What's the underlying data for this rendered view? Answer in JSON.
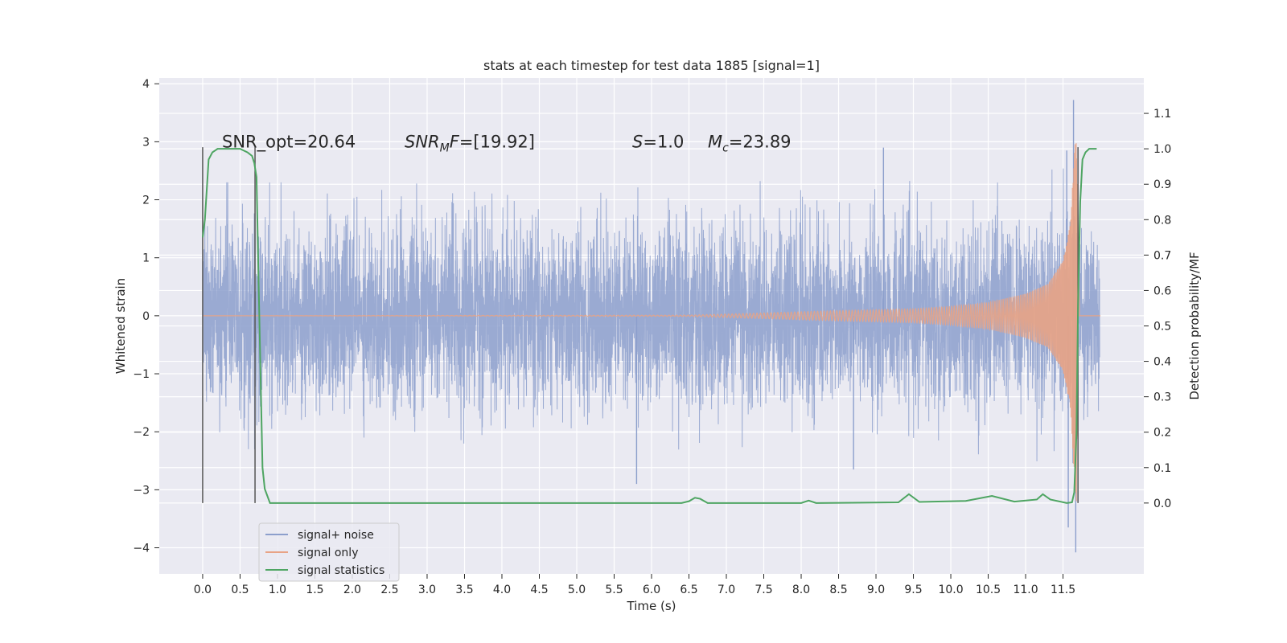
{
  "chart_data": {
    "type": "line",
    "title": "stats at each timestep for test data 1885 [signal=1]",
    "xlabel": "Time (s)",
    "ylabel": "Whitened strain",
    "ylabel_right": "Detection probability/MF",
    "xlim": [
      -0.58,
      12.58
    ],
    "ylim": [
      -4.45,
      4.1
    ],
    "ylim_right": [
      -0.2,
      1.2
    ],
    "x_ticks": [
      0.0,
      0.5,
      1.0,
      1.5,
      2.0,
      2.5,
      3.0,
      3.5,
      4.0,
      4.5,
      5.0,
      5.5,
      6.0,
      6.5,
      7.0,
      7.5,
      8.0,
      8.5,
      9.0,
      9.5,
      10.0,
      10.5,
      11.0,
      11.5
    ],
    "x_tick_labels": [
      "0.0",
      "0.5",
      "1.0",
      "1.5",
      "2.0",
      "2.5",
      "3.0",
      "3.5",
      "4.0",
      "4.5",
      "5.0",
      "5.5",
      "6.0",
      "6.5",
      "7.0",
      "7.5",
      "8.0",
      "8.5",
      "9.0",
      "9.5",
      "10.0",
      "10.5",
      "11.0",
      "11.5"
    ],
    "y_ticks": [
      4,
      3,
      2,
      1,
      0,
      -1,
      -2,
      -3,
      -4
    ],
    "y_tick_labels": [
      "4",
      "3",
      "2",
      "1",
      "0",
      "−1",
      "−2",
      "−3",
      "−4"
    ],
    "y_right_ticks": [
      1.1,
      1.0,
      0.9,
      0.8,
      0.7,
      0.6,
      0.5,
      0.4,
      0.3,
      0.2,
      0.1,
      0.0
    ],
    "y_right_tick_labels": [
      "1.1",
      "1.0",
      "0.9",
      "0.8",
      "0.7",
      "0.6",
      "0.5",
      "0.4",
      "0.3",
      "0.2",
      "0.1",
      "0.0"
    ],
    "grid": true,
    "legend_position": "lower-left",
    "annotations": {
      "snr_opt": "SNR_opt=20.64",
      "snr_mf": "SNR_MF=[19.92]",
      "s": "S=1.0",
      "mc": "M_c=23.89"
    },
    "vertical_markers": [
      0.0,
      0.7,
      11.7
    ],
    "series": [
      {
        "name": "signal+ noise",
        "color": "#8c9fcc",
        "axis": "left",
        "x_range": [
          0.0,
          11.99
        ],
        "rms_envelope": 1.05,
        "notable_peaks": [
          {
            "x": 11.64,
            "y": 3.72
          },
          {
            "x": 11.67,
            "y": -4.08
          },
          {
            "x": 11.57,
            "y": -3.65
          },
          {
            "x": 5.8,
            "y": -2.9
          },
          {
            "x": 9.1,
            "y": 2.9
          },
          {
            "x": 11.55,
            "y": 2.85
          },
          {
            "x": 8.7,
            "y": -2.65
          }
        ]
      },
      {
        "name": "signal only",
        "color": "#e8a385",
        "axis": "left",
        "x": [
          0.0,
          6.5,
          7.5,
          8.5,
          9.5,
          10.0,
          10.5,
          11.0,
          11.3,
          11.5,
          11.6,
          11.65,
          11.68,
          11.72,
          12.0
        ],
        "amplitude": [
          0.0,
          0.01,
          0.05,
          0.09,
          0.12,
          0.16,
          0.23,
          0.38,
          0.55,
          0.95,
          1.6,
          2.8,
          3.25,
          0.0,
          0.0
        ]
      },
      {
        "name": "signal statistics",
        "color": "#4ea562",
        "axis": "right",
        "x": [
          0.0,
          0.03,
          0.08,
          0.13,
          0.2,
          0.3,
          0.5,
          0.6,
          0.66,
          0.69,
          0.72,
          0.75,
          0.78,
          0.8,
          0.83,
          0.9,
          6.4,
          6.5,
          6.58,
          6.65,
          6.75,
          8.0,
          8.1,
          8.2,
          9.3,
          9.44,
          9.58,
          10.2,
          10.55,
          10.85,
          11.15,
          11.23,
          11.33,
          11.55,
          11.62,
          11.65,
          11.68,
          11.7,
          11.73,
          11.76,
          11.8,
          11.85,
          11.95
        ],
        "y": [
          0.75,
          0.8,
          0.97,
          0.99,
          1.0,
          1.0,
          1.0,
          0.99,
          0.98,
          0.96,
          0.92,
          0.6,
          0.3,
          0.1,
          0.04,
          0.0,
          0.0,
          0.005,
          0.015,
          0.012,
          0.0,
          0.0,
          0.007,
          0.0,
          0.002,
          0.025,
          0.003,
          0.006,
          0.02,
          0.004,
          0.01,
          0.025,
          0.01,
          0.0,
          0.002,
          0.03,
          0.2,
          0.55,
          0.85,
          0.97,
          0.99,
          1.0,
          1.0
        ]
      }
    ]
  }
}
